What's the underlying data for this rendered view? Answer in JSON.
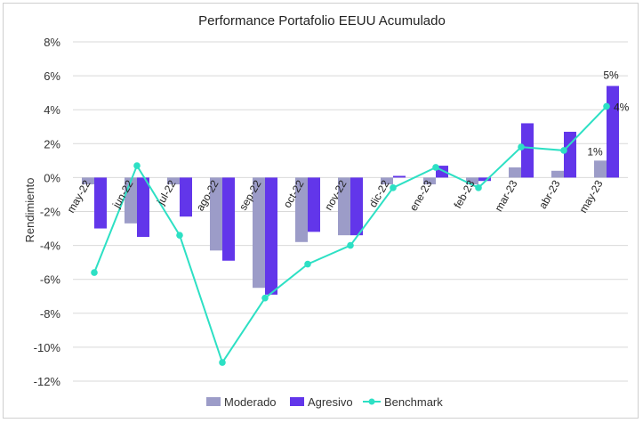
{
  "chart_data": {
    "type": "bar",
    "title": "Performance Portafolio EEUU Acumulado",
    "ylabel": "Rendimiento",
    "xlabel": "",
    "ylim": [
      -0.12,
      0.08
    ],
    "y_ticks": [
      "8%",
      "6%",
      "4%",
      "2%",
      "0%",
      "-2%",
      "-4%",
      "-6%",
      "-8%",
      "-10%",
      "-12%"
    ],
    "y_tick_values": [
      0.08,
      0.06,
      0.04,
      0.02,
      0.0,
      -0.02,
      -0.04,
      -0.06,
      -0.08,
      -0.1,
      -0.12
    ],
    "categories": [
      "may-22",
      "jun-22",
      "jul-22",
      "ago-22",
      "sep-22",
      "oct-22",
      "nov-22",
      "dic-22",
      "ene-23",
      "feb-23",
      "mar-23",
      "abr-23",
      "may-23"
    ],
    "series": [
      {
        "name": "Moderado",
        "type": "bar",
        "color": "#9c9cc8",
        "values": [
          -0.004,
          -0.027,
          -0.004,
          -0.043,
          -0.065,
          -0.038,
          -0.034,
          -0.004,
          -0.004,
          -0.004,
          0.006,
          0.004,
          0.01
        ]
      },
      {
        "name": "Agresivo",
        "type": "bar",
        "color": "#6236ea",
        "values": [
          -0.03,
          -0.035,
          -0.023,
          -0.049,
          -0.069,
          -0.032,
          -0.034,
          0.001,
          0.007,
          -0.002,
          0.032,
          0.027,
          0.054
        ]
      },
      {
        "name": "Benchmark",
        "type": "line",
        "color": "#2de0c4",
        "values": [
          -0.056,
          0.007,
          -0.034,
          -0.109,
          -0.071,
          -0.051,
          -0.04,
          -0.006,
          0.006,
          -0.006,
          0.018,
          0.016,
          0.042
        ]
      }
    ],
    "data_labels": [
      {
        "series": "Moderado",
        "index": 12,
        "text": "1%"
      },
      {
        "series": "Agresivo",
        "index": 12,
        "text": "5%"
      },
      {
        "series": "Benchmark",
        "index": 12,
        "text": "4%"
      }
    ],
    "grid": true,
    "legend_position": "bottom"
  }
}
